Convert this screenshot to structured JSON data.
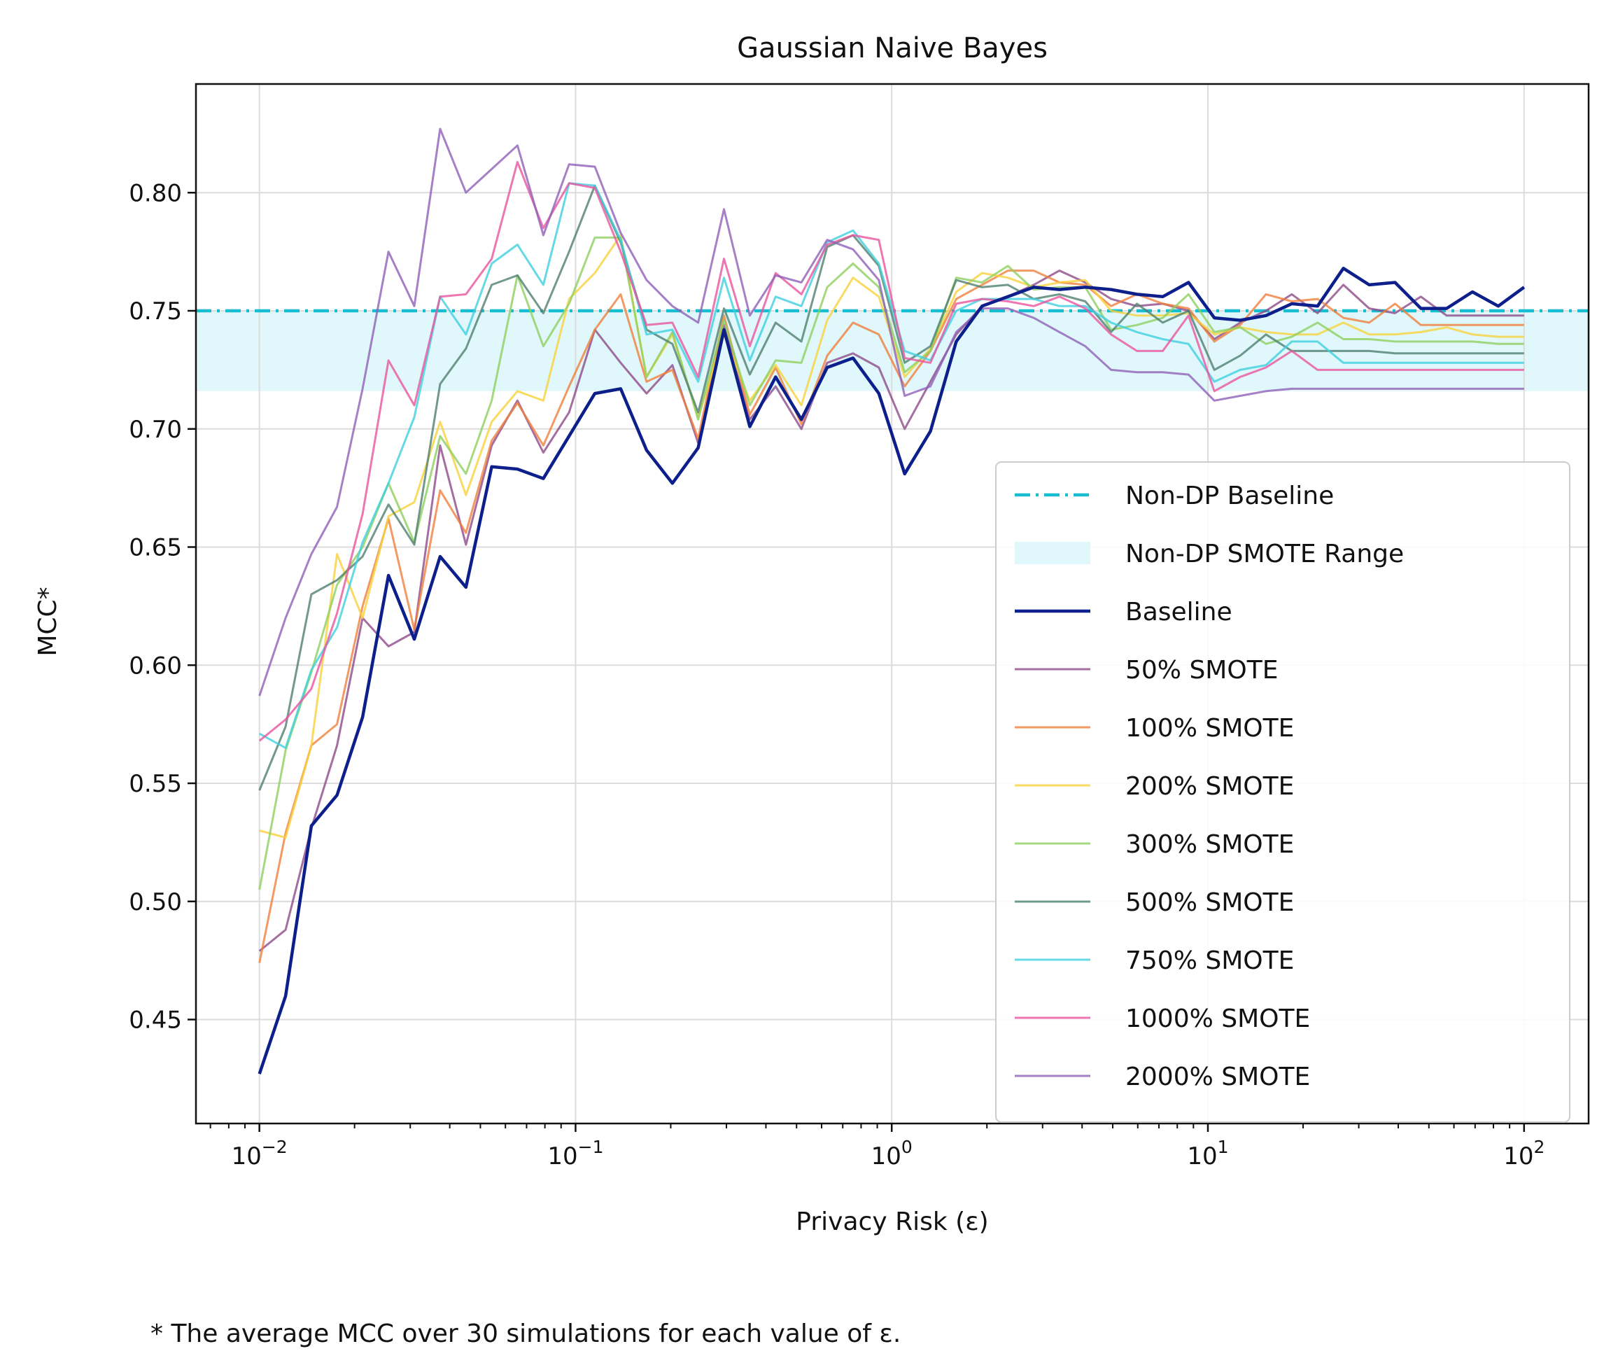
{
  "chart_data": {
    "type": "line",
    "title": "Gaussian Naive Bayes",
    "xlabel": "Privacy Risk (ε)",
    "ylabel": "MCC*",
    "footnote": "* The average MCC over 30 simulations for each value of ε.",
    "x_scale": "log",
    "xlim": [
      0.0063,
      160
    ],
    "ylim": [
      0.406,
      0.846
    ],
    "grid": true,
    "legend_position": "center-right",
    "x_ticks": [
      {
        "value": 0.01,
        "base": "10",
        "exp": "−2"
      },
      {
        "value": 0.1,
        "base": "10",
        "exp": "−1"
      },
      {
        "value": 1,
        "base": "10",
        "exp": "0"
      },
      {
        "value": 10,
        "base": "10",
        "exp": "1"
      },
      {
        "value": 100,
        "base": "10",
        "exp": "2"
      }
    ],
    "y_ticks": [
      "0.45",
      "0.50",
      "0.55",
      "0.60",
      "0.65",
      "0.70",
      "0.75",
      "0.80"
    ],
    "reference_line": {
      "name": "Non-DP Baseline",
      "value": 0.75,
      "color": "#17becf"
    },
    "reference_band": {
      "name": "Non-DP SMOTE Range",
      "low": 0.716,
      "high": 0.75,
      "color": "#e0f7fb"
    },
    "x": [
      0.01,
      0.0121,
      0.0146,
      0.0176,
      0.0212,
      0.0256,
      0.0309,
      0.0373,
      0.045,
      0.0543,
      0.0655,
      0.0791,
      0.0954,
      0.1151,
      0.1389,
      0.1677,
      0.2024,
      0.2442,
      0.2947,
      0.3556,
      0.4292,
      0.5179,
      0.6251,
      0.7543,
      0.9103,
      1.0985,
      1.3257,
      1.5999,
      1.9307,
      2.33,
      2.8118,
      3.3932,
      4.0949,
      4.9417,
      5.9636,
      7.1969,
      8.6851,
      10.481,
      12.649,
      15.264,
      18.421,
      22.23,
      26.827,
      32.375,
      39.069,
      47.149,
      56.899,
      68.665,
      82.864,
      100
    ],
    "series": [
      {
        "name": "Baseline",
        "color": "#0d1f8a",
        "width": 4.5,
        "opacity": 1,
        "values": [
          0.427,
          0.46,
          0.532,
          0.545,
          0.578,
          0.638,
          0.611,
          0.646,
          0.633,
          0.684,
          0.683,
          0.679,
          0.697,
          0.715,
          0.717,
          0.691,
          0.677,
          0.692,
          0.742,
          0.701,
          0.722,
          0.704,
          0.726,
          0.73,
          0.715,
          0.681,
          0.699,
          0.737,
          0.752,
          0.756,
          0.76,
          0.759,
          0.76,
          0.759,
          0.757,
          0.756,
          0.762,
          0.747,
          0.746,
          0.748,
          0.753,
          0.752,
          0.768,
          0.761,
          0.762,
          0.751,
          0.751,
          0.758,
          0.752,
          0.76
        ]
      },
      {
        "name": "50% SMOTE",
        "color": "#8e4a8a",
        "width": 3,
        "opacity": 0.8,
        "values": [
          0.479,
          0.488,
          0.531,
          0.566,
          0.62,
          0.608,
          0.614,
          0.693,
          0.651,
          0.693,
          0.712,
          0.69,
          0.707,
          0.742,
          0.728,
          0.715,
          0.727,
          0.694,
          0.744,
          0.704,
          0.718,
          0.7,
          0.728,
          0.732,
          0.726,
          0.7,
          0.72,
          0.74,
          0.752,
          0.756,
          0.761,
          0.767,
          0.762,
          0.755,
          0.752,
          0.753,
          0.75,
          0.738,
          0.745,
          0.75,
          0.757,
          0.749,
          0.761,
          0.751,
          0.749,
          0.756,
          0.748,
          0.748,
          0.748,
          0.748
        ]
      },
      {
        "name": "100% SMOTE",
        "color": "#f07f3c",
        "width": 3,
        "opacity": 0.8,
        "values": [
          0.474,
          0.529,
          0.566,
          0.575,
          0.625,
          0.662,
          0.615,
          0.674,
          0.656,
          0.695,
          0.711,
          0.693,
          0.718,
          0.742,
          0.757,
          0.72,
          0.725,
          0.696,
          0.748,
          0.706,
          0.726,
          0.702,
          0.731,
          0.745,
          0.74,
          0.718,
          0.733,
          0.755,
          0.761,
          0.767,
          0.767,
          0.762,
          0.761,
          0.752,
          0.757,
          0.753,
          0.751,
          0.737,
          0.744,
          0.757,
          0.754,
          0.755,
          0.747,
          0.745,
          0.753,
          0.744,
          0.744,
          0.744,
          0.744,
          0.744
        ]
      },
      {
        "name": "200% SMOTE",
        "color": "#f7d23c",
        "width": 3,
        "opacity": 0.8,
        "values": [
          0.53,
          0.527,
          0.566,
          0.647,
          0.62,
          0.663,
          0.669,
          0.703,
          0.672,
          0.703,
          0.716,
          0.712,
          0.755,
          0.766,
          0.782,
          0.722,
          0.74,
          0.705,
          0.74,
          0.712,
          0.727,
          0.71,
          0.746,
          0.764,
          0.756,
          0.722,
          0.734,
          0.758,
          0.766,
          0.764,
          0.76,
          0.762,
          0.763,
          0.75,
          0.748,
          0.748,
          0.749,
          0.74,
          0.743,
          0.741,
          0.74,
          0.74,
          0.745,
          0.74,
          0.74,
          0.741,
          0.743,
          0.74,
          0.739,
          0.739
        ]
      },
      {
        "name": "300% SMOTE",
        "color": "#8fcf5f",
        "width": 3,
        "opacity": 0.8,
        "values": [
          0.505,
          0.564,
          0.597,
          0.634,
          0.65,
          0.677,
          0.652,
          0.697,
          0.681,
          0.712,
          0.765,
          0.735,
          0.753,
          0.781,
          0.781,
          0.722,
          0.741,
          0.704,
          0.746,
          0.71,
          0.729,
          0.728,
          0.76,
          0.77,
          0.76,
          0.724,
          0.733,
          0.764,
          0.762,
          0.769,
          0.759,
          0.76,
          0.76,
          0.742,
          0.744,
          0.747,
          0.757,
          0.741,
          0.743,
          0.736,
          0.739,
          0.745,
          0.738,
          0.738,
          0.737,
          0.737,
          0.737,
          0.737,
          0.736,
          0.736
        ]
      },
      {
        "name": "500% SMOTE",
        "color": "#4f7f6f",
        "width": 3,
        "opacity": 0.8,
        "values": [
          0.547,
          0.574,
          0.63,
          0.636,
          0.646,
          0.668,
          0.651,
          0.719,
          0.734,
          0.761,
          0.765,
          0.749,
          0.775,
          0.803,
          0.779,
          0.742,
          0.736,
          0.707,
          0.751,
          0.723,
          0.745,
          0.737,
          0.777,
          0.782,
          0.769,
          0.728,
          0.735,
          0.763,
          0.76,
          0.761,
          0.755,
          0.757,
          0.754,
          0.741,
          0.753,
          0.745,
          0.75,
          0.725,
          0.731,
          0.74,
          0.733,
          0.733,
          0.733,
          0.733,
          0.732,
          0.732,
          0.732,
          0.732,
          0.732,
          0.732
        ]
      },
      {
        "name": "750% SMOTE",
        "color": "#3fd0e0",
        "width": 3,
        "opacity": 0.8,
        "values": [
          0.571,
          0.565,
          0.598,
          0.616,
          0.652,
          0.677,
          0.705,
          0.756,
          0.74,
          0.77,
          0.778,
          0.761,
          0.804,
          0.803,
          0.78,
          0.74,
          0.742,
          0.72,
          0.764,
          0.729,
          0.756,
          0.752,
          0.779,
          0.784,
          0.77,
          0.733,
          0.729,
          0.75,
          0.755,
          0.755,
          0.755,
          0.752,
          0.752,
          0.745,
          0.741,
          0.738,
          0.736,
          0.72,
          0.725,
          0.727,
          0.737,
          0.737,
          0.728,
          0.728,
          0.728,
          0.728,
          0.728,
          0.728,
          0.728,
          0.728
        ]
      },
      {
        "name": "1000% SMOTE",
        "color": "#e8559f",
        "width": 3,
        "opacity": 0.8,
        "values": [
          0.568,
          0.577,
          0.59,
          0.622,
          0.664,
          0.729,
          0.71,
          0.756,
          0.757,
          0.772,
          0.813,
          0.785,
          0.804,
          0.802,
          0.775,
          0.744,
          0.745,
          0.722,
          0.772,
          0.735,
          0.766,
          0.757,
          0.778,
          0.782,
          0.78,
          0.73,
          0.728,
          0.753,
          0.755,
          0.754,
          0.752,
          0.756,
          0.751,
          0.74,
          0.733,
          0.733,
          0.748,
          0.716,
          0.722,
          0.726,
          0.733,
          0.725,
          0.725,
          0.725,
          0.725,
          0.725,
          0.725,
          0.725,
          0.725,
          0.725
        ]
      },
      {
        "name": "2000% SMOTE",
        "color": "#9060b8",
        "width": 3,
        "opacity": 0.8,
        "values": [
          0.587,
          0.62,
          0.647,
          0.667,
          0.717,
          0.775,
          0.752,
          0.827,
          0.8,
          0.81,
          0.82,
          0.782,
          0.812,
          0.811,
          0.783,
          0.763,
          0.752,
          0.745,
          0.793,
          0.748,
          0.765,
          0.762,
          0.78,
          0.776,
          0.763,
          0.714,
          0.718,
          0.741,
          0.751,
          0.751,
          0.747,
          0.741,
          0.735,
          0.725,
          0.724,
          0.724,
          0.723,
          0.712,
          0.714,
          0.716,
          0.717,
          0.717,
          0.717,
          0.717,
          0.717,
          0.717,
          0.717,
          0.717,
          0.717,
          0.717
        ]
      }
    ]
  }
}
